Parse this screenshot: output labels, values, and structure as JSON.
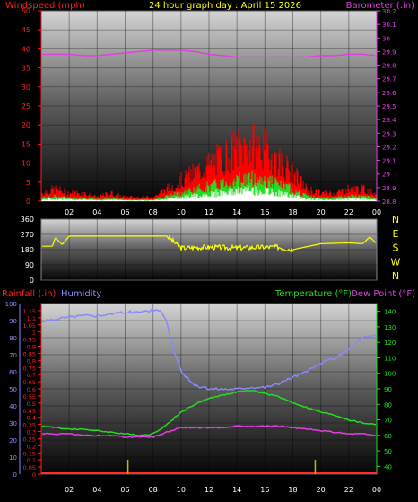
{
  "header": {
    "left": "Windspeed (mph)",
    "center": "24 hour graph day : April 15 2026",
    "right": "Barometer (.in)"
  },
  "x_ticks": [
    "02",
    "04",
    "06",
    "08",
    "10",
    "12",
    "14",
    "16",
    "18",
    "20",
    "22",
    "00"
  ],
  "colors": {
    "windspeed": "#ff1a1a",
    "gust": "#ff0000",
    "wind_green": "#22dd22",
    "wind_white": "#ffffff",
    "barometer": "#e040e0",
    "direction": "#ffff00",
    "rainfall": "#ff2a2a",
    "humidity": "#8888ff",
    "temperature": "#22dd22",
    "dewpoint": "#e040e0",
    "rain_ticks": "#c8b400"
  },
  "chart_data": [
    {
      "type": "area",
      "title": "24 hour graph day : April 15 2026",
      "ylabel": "Windspeed (mph)",
      "ylabel_right": "Barometer (.in)",
      "ylim": [
        0,
        50
      ],
      "ylim_right": [
        28.8,
        30.2
      ],
      "yticks": [
        0,
        5,
        10,
        15,
        20,
        25,
        30,
        35,
        40,
        45,
        50
      ],
      "yticks_right": [
        "28.8",
        "28.9",
        "29",
        "29.1",
        "29.2",
        "29.3",
        "29.4",
        "29.5",
        "29.6",
        "29.7",
        "29.8",
        "29.9",
        "30",
        "30.1",
        "30.2"
      ],
      "grid": true,
      "series": [
        {
          "name": "Windspeed (mph)",
          "x": [
            0,
            1,
            2,
            3,
            4,
            5,
            6,
            7,
            8,
            9,
            10,
            11,
            12,
            13,
            14,
            15,
            16,
            17,
            18,
            19,
            20,
            21,
            22,
            23,
            24
          ],
          "values": [
            2,
            3,
            2,
            2,
            1,
            2,
            1,
            1,
            1,
            3,
            5,
            7,
            9,
            11,
            13,
            14,
            13,
            10,
            7,
            3,
            2,
            2,
            3,
            3,
            2
          ]
        },
        {
          "name": "Barometer (.in)",
          "x": [
            0,
            1,
            2,
            3,
            4,
            5,
            6,
            7,
            8,
            9,
            10,
            11,
            12,
            13,
            14,
            15,
            16,
            17,
            18,
            19,
            20,
            21,
            22,
            23,
            24
          ],
          "values": [
            29.88,
            29.88,
            29.88,
            29.87,
            29.87,
            29.88,
            29.89,
            29.9,
            29.91,
            29.91,
            29.91,
            29.9,
            29.88,
            29.87,
            29.86,
            29.86,
            29.86,
            29.86,
            29.86,
            29.86,
            29.87,
            29.87,
            29.88,
            29.88,
            29.87
          ]
        }
      ]
    },
    {
      "type": "line",
      "ylim": [
        0,
        360
      ],
      "yticks": [
        0,
        90,
        180,
        270,
        360
      ],
      "yticks_right": [
        "N",
        "W",
        "S",
        "E",
        "N"
      ],
      "series": [
        {
          "name": "Wind direction",
          "x": [
            0,
            0.8,
            1,
            1.5,
            2,
            4,
            6,
            8,
            9,
            10,
            12,
            14,
            16,
            17,
            18,
            20,
            22,
            23,
            23.5,
            24
          ],
          "values": [
            200,
            200,
            250,
            210,
            260,
            260,
            260,
            260,
            260,
            190,
            195,
            190,
            195,
            195,
            180,
            215,
            220,
            215,
            255,
            215
          ]
        }
      ]
    },
    {
      "type": "line",
      "ylabel": "Rainfall (.in)",
      "ylabel2": "Humidity",
      "ylabel_right": "Temperature (°F)",
      "ylabel_right2": "Dew Point (°F)",
      "ylim_rain": [
        0,
        1.2
      ],
      "ylim_humidity": [
        0,
        100
      ],
      "ylim_right": [
        35,
        145
      ],
      "yticks_rain": [
        "0",
        "0.05",
        "0.1",
        "0.15",
        "0.2",
        "0.25",
        "0.3",
        "0.35",
        "0.4",
        "0.45",
        "0.5",
        "0.55",
        "0.6",
        "0.65",
        "0.7",
        "0.75",
        "0.8",
        "0.85",
        "0.9",
        "0.95",
        "1",
        "1.05",
        "1.1",
        "1.15"
      ],
      "yticks_humidity": [
        0,
        10,
        20,
        30,
        40,
        50,
        60,
        70,
        80,
        90,
        100
      ],
      "yticks_right": [
        40,
        50,
        60,
        70,
        80,
        90,
        100,
        110,
        120,
        130,
        140
      ],
      "grid": true,
      "series": [
        {
          "name": "Humidity",
          "x": [
            0,
            1,
            2,
            3,
            4,
            5,
            6,
            7,
            8,
            8.6,
            9,
            9.5,
            10,
            11,
            12,
            13,
            14,
            15,
            16,
            17,
            18,
            19,
            20,
            21,
            22,
            23,
            24
          ],
          "values": [
            89,
            91,
            92,
            93,
            93,
            94,
            95,
            95,
            96,
            96,
            88,
            72,
            60,
            52,
            50,
            50,
            50,
            51,
            51,
            53,
            57,
            60,
            65,
            68,
            73,
            80,
            82
          ]
        },
        {
          "name": "Temperature (°F)",
          "x": [
            0,
            1,
            2,
            3,
            4,
            5,
            6,
            7,
            8,
            9,
            10,
            11,
            12,
            13,
            14,
            15,
            16,
            17,
            18,
            19,
            20,
            21,
            22,
            23,
            24
          ],
          "values": [
            66,
            65,
            64,
            64,
            63,
            62,
            61,
            60,
            61,
            67,
            75,
            80,
            84,
            86,
            88,
            89,
            87,
            85,
            81,
            78,
            75,
            73,
            70,
            68,
            67
          ]
        },
        {
          "name": "Dew Point (°F)",
          "x": [
            0,
            1,
            2,
            3,
            4,
            5,
            6,
            7,
            8,
            9,
            10,
            11,
            12,
            13,
            14,
            15,
            16,
            17,
            18,
            19,
            20,
            21,
            22,
            23,
            24
          ],
          "values": [
            61,
            61,
            61,
            60,
            60,
            60,
            59,
            59,
            59,
            62,
            65,
            65,
            65,
            65,
            66,
            66,
            66,
            66,
            65,
            64,
            63,
            62,
            61,
            61,
            60
          ]
        },
        {
          "name": "Rainfall (.in)",
          "x": [
            0,
            24
          ],
          "values": [
            0,
            0
          ]
        }
      ]
    }
  ]
}
